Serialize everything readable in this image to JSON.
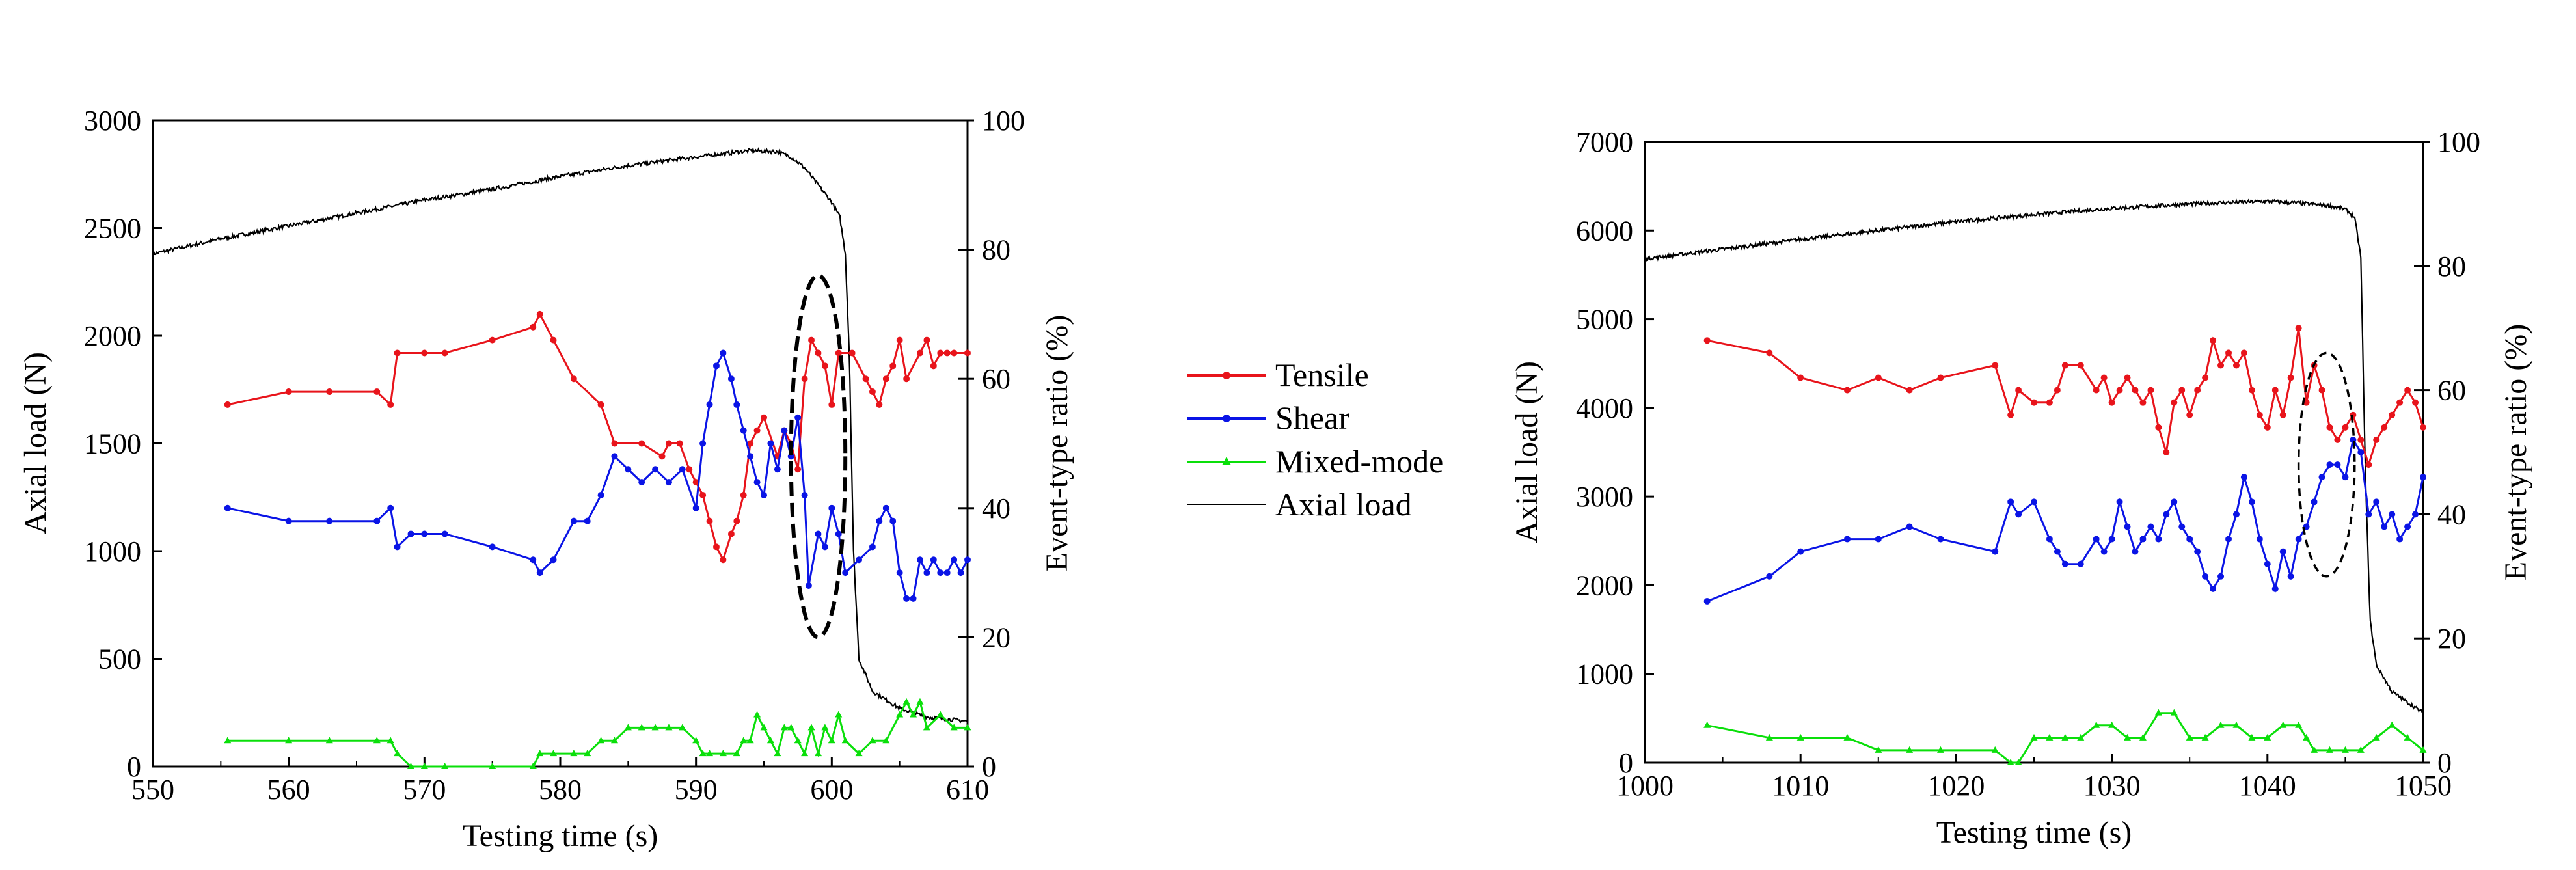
{
  "colors": {
    "tensile": "#e8141b",
    "shear": "#0a14e6",
    "mixed": "#0adf0a",
    "axial": "#000000",
    "ellipse": "#000000"
  },
  "legend": {
    "tensile": "Tensile",
    "shear": "Shear",
    "mixed": "Mixed-mode",
    "axial": "Axial load"
  },
  "chart_data": [
    {
      "type": "line",
      "xlabel": "Testing time (s)",
      "ylabel": "Axial load (N)",
      "y2label": "Event-type ratio (%)",
      "xlim": [
        550,
        610
      ],
      "ylim": [
        0,
        3000
      ],
      "y2lim": [
        0,
        100
      ],
      "xticks": [
        "550",
        "560",
        "570",
        "580",
        "590",
        "600",
        "610"
      ],
      "yticks": [
        "0",
        "500",
        "1000",
        "1500",
        "2000",
        "2500",
        "3000"
      ],
      "y2ticks": [
        "0",
        "20",
        "40",
        "60",
        "80",
        "100"
      ],
      "grid": false,
      "axial_load": {
        "x": [
          550,
          555,
          560,
          565,
          570,
          575,
          580,
          585,
          590,
          594,
          596,
          597,
          598,
          599,
          600,
          600.6,
          601,
          601.3,
          601.6,
          602,
          603,
          605,
          607,
          610
        ],
        "y": [
          2380,
          2450,
          2510,
          2570,
          2630,
          2680,
          2740,
          2790,
          2830,
          2860,
          2855,
          2830,
          2780,
          2700,
          2620,
          2550,
          2380,
          1900,
          1000,
          500,
          350,
          270,
          230,
          210
        ]
      },
      "series": [
        {
          "name": "Tensile",
          "x": [
            555.5,
            560,
            563,
            566.5,
            567.5,
            568,
            570,
            571.5,
            575,
            578,
            578.5,
            579.5,
            581,
            583,
            584,
            586,
            587.5,
            588,
            588.8,
            589.5,
            590,
            590.5,
            591,
            591.5,
            592,
            592.6,
            593,
            593.5,
            594,
            594.5,
            595,
            596,
            596.5,
            597,
            597.5,
            598,
            598.5,
            599,
            599.5,
            600,
            600.5,
            601.5,
            602.5,
            603,
            603.5,
            604,
            604.5,
            605,
            605.5,
            606.5,
            607,
            607.5,
            608,
            608.5,
            609,
            610
          ],
          "y": [
            56,
            58,
            58,
            58,
            56,
            64,
            64,
            64,
            66,
            68,
            70,
            66,
            60,
            56,
            50,
            50,
            48,
            50,
            50,
            46,
            44,
            42,
            38,
            34,
            32,
            36,
            38,
            42,
            50,
            52,
            54,
            48,
            52,
            50,
            46,
            60,
            66,
            64,
            62,
            56,
            64,
            64,
            60,
            58,
            56,
            60,
            62,
            66,
            60,
            64,
            66,
            62,
            64,
            64,
            64,
            64
          ]
        },
        {
          "name": "Shear",
          "x": [
            555.5,
            560,
            563,
            566.5,
            567.5,
            568,
            569,
            570,
            571.5,
            575,
            578,
            578.5,
            579.5,
            581,
            582,
            583,
            584,
            585,
            586,
            587,
            588,
            589,
            590,
            590.5,
            591,
            591.5,
            592,
            592.6,
            593,
            593.5,
            594,
            594.5,
            595,
            595.5,
            596,
            596.5,
            597,
            597.5,
            598,
            598.3,
            599,
            599.5,
            600,
            600.5,
            601,
            602,
            603,
            603.5,
            604,
            604.5,
            605,
            605.5,
            606,
            606.5,
            607,
            607.5,
            608,
            608.5,
            609,
            609.5,
            610
          ],
          "y": [
            40,
            38,
            38,
            38,
            40,
            34,
            36,
            36,
            36,
            34,
            32,
            30,
            32,
            38,
            38,
            42,
            48,
            46,
            44,
            46,
            44,
            46,
            40,
            50,
            56,
            62,
            64,
            60,
            56,
            52,
            48,
            44,
            42,
            50,
            46,
            52,
            48,
            54,
            42,
            28,
            36,
            34,
            40,
            36,
            30,
            32,
            34,
            38,
            40,
            38,
            30,
            26,
            26,
            32,
            30,
            32,
            30,
            30,
            32,
            30,
            32
          ]
        },
        {
          "name": "Mixed-mode",
          "x": [
            555.5,
            560,
            563,
            566.5,
            567.5,
            568,
            569,
            570,
            571.5,
            575,
            578,
            578.5,
            579.5,
            581,
            582,
            583,
            584,
            585,
            586,
            587,
            588,
            589,
            590,
            590.5,
            591,
            592,
            593,
            593.5,
            594,
            594.5,
            595,
            595.5,
            596,
            596.5,
            597,
            597.5,
            598,
            598.5,
            599,
            599.5,
            600,
            600.5,
            601,
            602,
            603,
            604,
            605,
            605.5,
            606,
            606.5,
            607,
            608,
            609,
            610
          ],
          "y": [
            4,
            4,
            4,
            4,
            4,
            2,
            0,
            0,
            0,
            0,
            0,
            2,
            2,
            2,
            2,
            4,
            4,
            6,
            6,
            6,
            6,
            6,
            4,
            2,
            2,
            2,
            2,
            4,
            4,
            8,
            6,
            4,
            2,
            6,
            6,
            4,
            2,
            6,
            2,
            6,
            4,
            8,
            4,
            2,
            4,
            4,
            8,
            10,
            8,
            10,
            6,
            8,
            6,
            6
          ]
        }
      ],
      "annotation": {
        "shape": "dashed-ellipse",
        "center_x": 599,
        "center_y_pct": 48,
        "half_width_x": 2,
        "half_height_pct": 28
      }
    },
    {
      "type": "line",
      "xlabel": "Testing time (s)",
      "ylabel": "Axial load (N)",
      "y2label": "Event-type ratio (%)",
      "xlim": [
        1000,
        1050
      ],
      "ylim": [
        0,
        7000
      ],
      "y2lim": [
        0,
        100
      ],
      "xticks": [
        "1000",
        "1010",
        "1020",
        "1030",
        "1040",
        "1050"
      ],
      "yticks": [
        "0",
        "1000",
        "2000",
        "3000",
        "4000",
        "5000",
        "6000",
        "7000"
      ],
      "y2ticks": [
        "0",
        "20",
        "40",
        "60",
        "80",
        "100"
      ],
      "grid": false,
      "axial_load": {
        "x": [
          1000,
          1005,
          1010,
          1015,
          1020,
          1025,
          1030,
          1035,
          1040,
          1042,
          1044,
          1045,
          1045.6,
          1046,
          1046.3,
          1046.6,
          1047,
          1048,
          1050
        ],
        "y": [
          5680,
          5790,
          5900,
          6000,
          6100,
          6180,
          6250,
          6300,
          6330,
          6310,
          6280,
          6240,
          6150,
          5700,
          3200,
          1600,
          1100,
          800,
          560
        ]
      },
      "series": [
        {
          "name": "Tensile",
          "x": [
            1004,
            1008,
            1010,
            1013,
            1015,
            1017,
            1019,
            1022.5,
            1023.5,
            1024,
            1025,
            1026,
            1026.5,
            1027,
            1028,
            1029,
            1029.5,
            1030,
            1030.5,
            1031,
            1031.5,
            1032,
            1032.5,
            1033,
            1033.5,
            1034,
            1034.5,
            1035,
            1035.5,
            1036,
            1036.5,
            1037,
            1037.5,
            1038,
            1038.5,
            1039,
            1039.5,
            1040,
            1040.5,
            1041,
            1041.5,
            1042,
            1042.5,
            1043,
            1043.5,
            1044,
            1044.5,
            1045,
            1045.5,
            1046,
            1046.5,
            1047,
            1047.5,
            1048,
            1048.5,
            1049,
            1049.5,
            1050
          ],
          "y": [
            68,
            66,
            62,
            60,
            62,
            60,
            62,
            64,
            56,
            60,
            58,
            58,
            60,
            64,
            64,
            60,
            62,
            58,
            60,
            62,
            60,
            58,
            60,
            54,
            50,
            58,
            60,
            56,
            60,
            62,
            68,
            64,
            66,
            64,
            66,
            60,
            56,
            54,
            60,
            56,
            62,
            70,
            58,
            64,
            60,
            54,
            52,
            54,
            56,
            52,
            48,
            52,
            54,
            56,
            58,
            60,
            58,
            54
          ]
        },
        {
          "name": "Shear",
          "x": [
            1004,
            1008,
            1010,
            1013,
            1015,
            1017,
            1019,
            1022.5,
            1023.5,
            1024,
            1025,
            1026,
            1026.5,
            1027,
            1028,
            1029,
            1029.5,
            1030,
            1030.5,
            1031,
            1031.5,
            1032,
            1032.5,
            1033,
            1033.5,
            1034,
            1034.5,
            1035,
            1035.5,
            1036,
            1036.5,
            1037,
            1037.5,
            1038,
            1038.5,
            1039,
            1039.5,
            1040,
            1040.5,
            1041,
            1041.5,
            1042,
            1042.5,
            1043,
            1043.5,
            1044,
            1044.5,
            1045,
            1045.5,
            1046,
            1046.5,
            1047,
            1047.5,
            1048,
            1048.5,
            1049,
            1049.5,
            1050
          ],
          "y": [
            26,
            30,
            34,
            36,
            36,
            38,
            36,
            34,
            42,
            40,
            42,
            36,
            34,
            32,
            32,
            36,
            34,
            36,
            42,
            38,
            34,
            36,
            38,
            36,
            40,
            42,
            38,
            36,
            34,
            30,
            28,
            30,
            36,
            40,
            46,
            42,
            36,
            32,
            28,
            34,
            30,
            36,
            38,
            42,
            46,
            48,
            48,
            46,
            52,
            50,
            40,
            42,
            38,
            40,
            36,
            38,
            40,
            46
          ]
        },
        {
          "name": "Mixed-mode",
          "x": [
            1004,
            1008,
            1010,
            1013,
            1015,
            1017,
            1019,
            1022.5,
            1023.5,
            1024,
            1025,
            1026,
            1027,
            1028,
            1029,
            1030,
            1031,
            1032,
            1033,
            1034,
            1035,
            1036,
            1037,
            1038,
            1039,
            1040,
            1041,
            1042,
            1042.5,
            1043,
            1044,
            1045,
            1046,
            1047,
            1048,
            1049,
            1050
          ],
          "y": [
            6,
            4,
            4,
            4,
            2,
            2,
            2,
            2,
            0,
            0,
            4,
            4,
            4,
            4,
            6,
            6,
            4,
            4,
            8,
            8,
            4,
            4,
            6,
            6,
            4,
            4,
            6,
            6,
            4,
            2,
            2,
            2,
            2,
            4,
            6,
            4,
            2
          ]
        }
      ],
      "annotation": {
        "shape": "dashed-ellipse",
        "center_x": 1043.8,
        "center_y_pct": 48,
        "half_width_x": 1.8,
        "half_height_pct": 18
      }
    }
  ]
}
